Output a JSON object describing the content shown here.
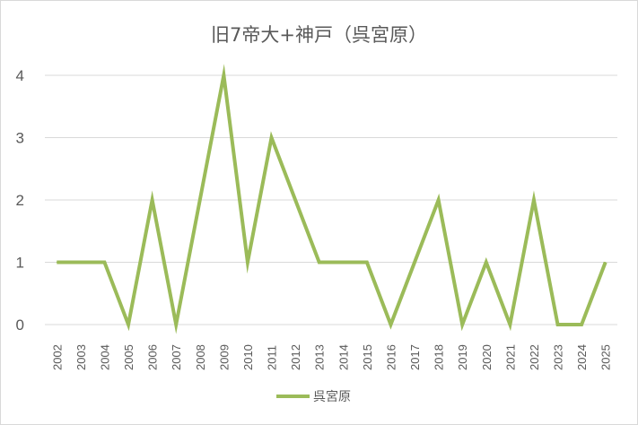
{
  "chart_data": {
    "type": "line",
    "title": "旧7帝大+神戸（呉宮原）",
    "xlabel": "",
    "ylabel": "",
    "categories": [
      "2002",
      "2003",
      "2004",
      "2005",
      "2006",
      "2007",
      "2008",
      "2009",
      "2010",
      "2011",
      "2012",
      "2013",
      "2014",
      "2015",
      "2016",
      "2017",
      "2018",
      "2019",
      "2020",
      "2021",
      "2022",
      "2023",
      "2024",
      "2025"
    ],
    "series": [
      {
        "name": "呉宮原",
        "color": "#9bbb59",
        "values": [
          1,
          1,
          1,
          0,
          2,
          0,
          2,
          4,
          1,
          3,
          2,
          1,
          1,
          1,
          0,
          1,
          2,
          0,
          1,
          0,
          2,
          0,
          0,
          1
        ]
      }
    ],
    "ylim": [
      0,
      4
    ],
    "yticks": [
      "0",
      "1",
      "2",
      "3",
      "4"
    ],
    "grid": true,
    "legend_position": "bottom",
    "colors": {
      "gridline": "#d9d9d9",
      "text": "#595959"
    }
  }
}
